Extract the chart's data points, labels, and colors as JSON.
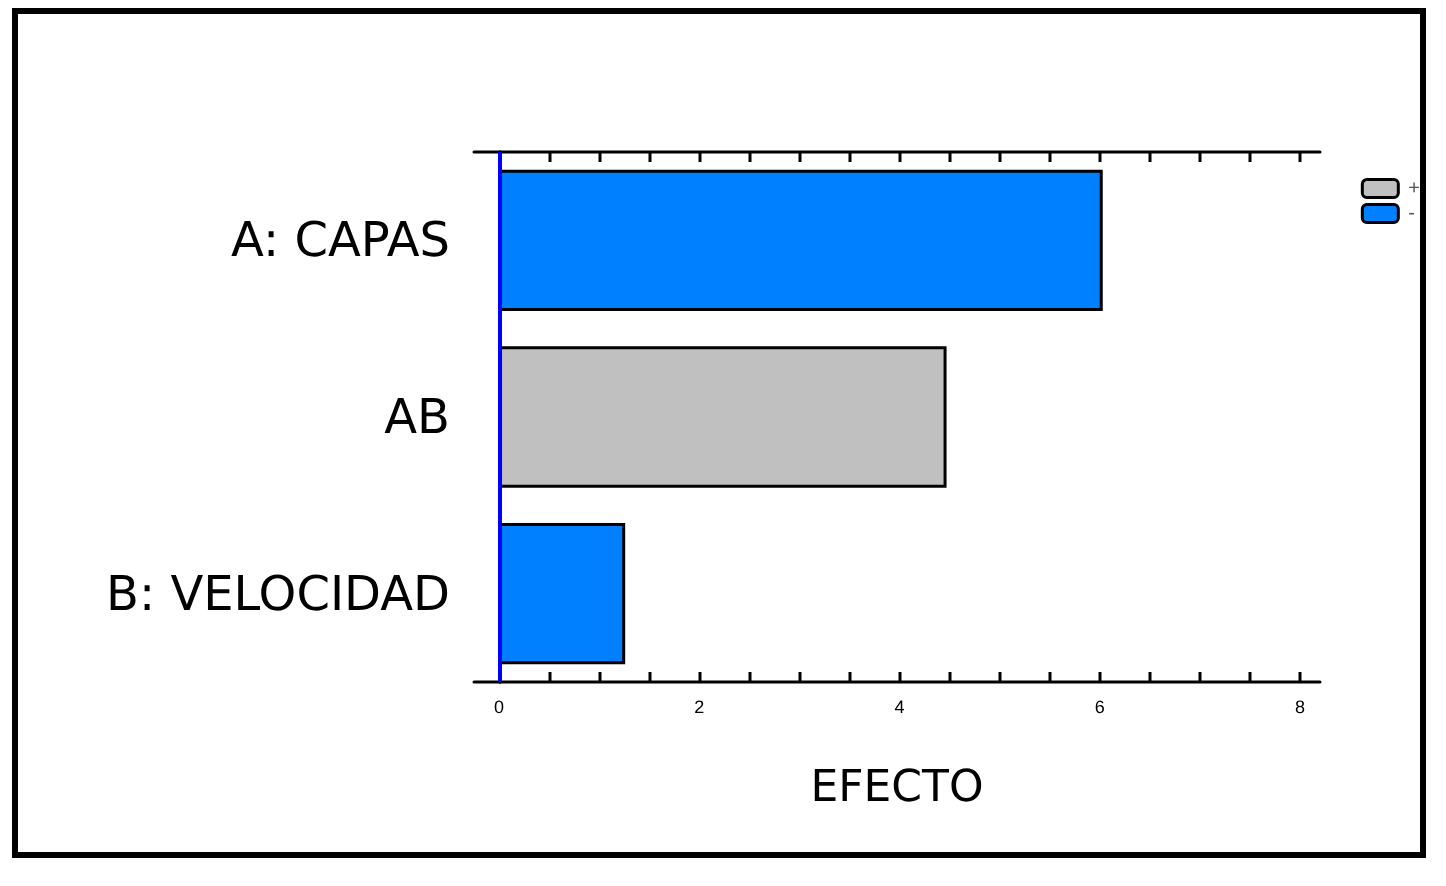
{
  "chart_data": {
    "type": "bar",
    "orientation": "horizontal",
    "stacked": true,
    "xlabel": "EFECTO",
    "categories": [
      "A: CAPAS",
      "AB",
      "B: VELOCIDAD"
    ],
    "series": [
      {
        "name": "+",
        "color": "#c0c0c0",
        "values": [
          null,
          4.47,
          null
        ]
      },
      {
        "name": "-",
        "color": "#0080ff",
        "values": [
          6.03,
          null,
          1.26
        ]
      }
    ],
    "xlim": [
      -0.25,
      8.2
    ],
    "xticks": [
      0,
      {
        "value": 0.5,
        "label": null
      },
      {
        "value": 1,
        "label": null
      },
      {
        "value": 1.5,
        "label": null
      },
      2,
      {
        "value": 2.5,
        "label": null
      },
      {
        "value": 3,
        "label": null
      },
      {
        "value": 3.5,
        "label": null
      },
      4,
      {
        "value": 4.5,
        "label": null
      },
      {
        "value": 5,
        "label": null
      },
      {
        "value": 5.5,
        "label": null
      },
      6,
      {
        "value": 6.5,
        "label": null
      },
      {
        "value": 7,
        "label": null
      },
      {
        "value": 7.5,
        "label": null
      },
      8
    ],
    "ref_lines": [
      {
        "axis": "x",
        "value": 0,
        "color": "#0000ff"
      }
    ],
    "legend": "top right",
    "grid": false
  }
}
